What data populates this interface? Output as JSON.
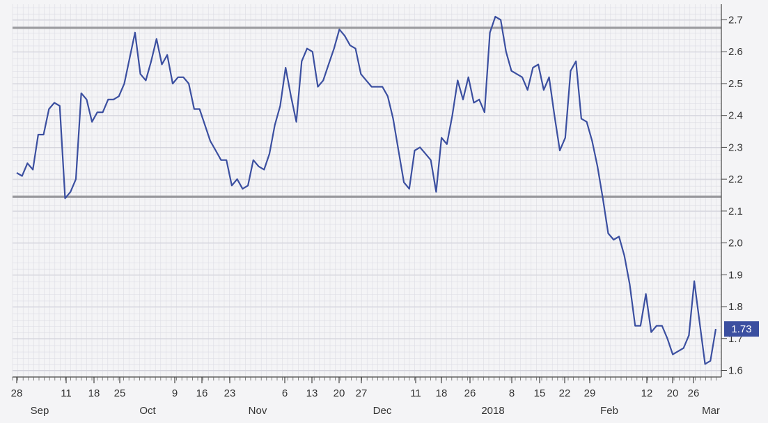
{
  "chart_data": {
    "type": "line",
    "title": "",
    "xlabel": "",
    "ylabel": "",
    "ylim": [
      1.58,
      2.74
    ],
    "grid": true,
    "colors": {
      "line": "#3b4fa0",
      "level": "#9a9a9e",
      "badge": "#3b4fa0",
      "background": "#f4f4f6",
      "grid": "#dcdce4"
    },
    "yticks": [
      "1.6",
      "1.7",
      "1.8",
      "1.9",
      "2.0",
      "2.1",
      "2.2",
      "2.3",
      "2.4",
      "2.5",
      "2.6",
      "2.7"
    ],
    "xticks": [
      "28",
      "11",
      "18",
      "25",
      "9",
      "16",
      "23",
      "6",
      "13",
      "20",
      "27",
      "11",
      "18",
      "26",
      "8",
      "15",
      "22",
      "29",
      "12",
      "20",
      "26"
    ],
    "months": [
      "Sep",
      "Oct",
      "Nov",
      "Dec",
      "2018",
      "Feb",
      "Mar"
    ],
    "horizontal_levels": [
      2.675,
      2.145
    ],
    "last_value_label": "1.73",
    "series": [
      {
        "values": [
          2.22,
          2.21,
          2.25,
          2.23,
          2.34,
          2.34,
          2.42,
          2.44,
          2.43,
          2.14,
          2.16,
          2.2,
          2.47,
          2.45,
          2.38,
          2.41,
          2.41,
          2.45,
          2.45,
          2.46,
          2.5,
          2.58,
          2.66,
          2.53,
          2.51,
          2.57,
          2.64,
          2.56,
          2.59,
          2.5,
          2.52,
          2.52,
          2.5,
          2.42,
          2.42,
          2.37,
          2.32,
          2.29,
          2.26,
          2.26,
          2.18,
          2.2,
          2.17,
          2.18,
          2.26,
          2.24,
          2.23,
          2.28,
          2.37,
          2.43,
          2.55,
          2.46,
          2.38,
          2.57,
          2.61,
          2.6,
          2.49,
          2.51,
          2.56,
          2.61,
          2.67,
          2.65,
          2.62,
          2.61,
          2.53,
          2.51,
          2.49,
          2.49,
          2.49,
          2.46,
          2.39,
          2.29,
          2.19,
          2.17,
          2.29,
          2.3,
          2.28,
          2.26,
          2.16,
          2.33,
          2.31,
          2.4,
          2.51,
          2.45,
          2.52,
          2.44,
          2.45,
          2.41,
          2.66,
          2.71,
          2.7,
          2.6,
          2.54,
          2.53,
          2.52,
          2.48,
          2.55,
          2.56,
          2.48,
          2.52,
          2.4,
          2.29,
          2.33,
          2.54,
          2.57,
          2.39,
          2.38,
          2.32,
          2.24,
          2.14,
          2.03,
          2.01,
          2.02,
          1.96,
          1.87,
          1.74,
          1.74,
          1.84,
          1.72,
          1.74,
          1.74,
          1.7,
          1.65,
          1.66,
          1.67,
          1.71,
          1.88,
          1.75,
          1.62,
          1.63,
          1.73
        ]
      }
    ]
  }
}
